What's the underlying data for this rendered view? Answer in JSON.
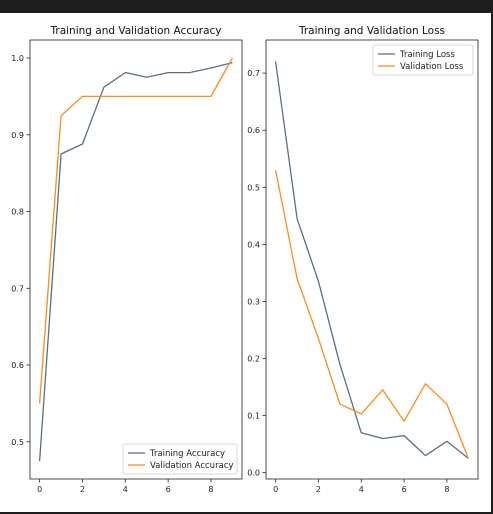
{
  "colors": {
    "background": "#1e1e1e",
    "figure": "#ffffff",
    "training_series": "#5a6f80",
    "validation_series": "#ff8c1a"
  },
  "chart_data": [
    {
      "type": "line",
      "title": "Training and Validation Accuracy",
      "xlabel": "",
      "ylabel": "",
      "x": [
        0,
        1,
        2,
        3,
        4,
        5,
        6,
        7,
        8,
        9
      ],
      "xticks": [
        "0",
        "2",
        "4",
        "6",
        "8"
      ],
      "xtick_values": [
        0,
        2,
        4,
        6,
        8
      ],
      "yticks": [
        "0.5",
        "0.6",
        "0.7",
        "0.8",
        "0.9",
        "1.0"
      ],
      "ytick_values": [
        0.5,
        0.6,
        0.7,
        0.8,
        0.9,
        1.0
      ],
      "xlim": [
        -0.45,
        9.45
      ],
      "ylim": [
        0.4515,
        1.0235
      ],
      "grid": false,
      "legend_position": "bottom-right",
      "series": [
        {
          "name": "Training Accuracy",
          "color": "#5a6f80",
          "values": [
            0.475,
            0.875,
            0.888,
            0.962,
            0.981,
            0.975,
            0.981,
            0.981,
            0.987,
            0.994
          ]
        },
        {
          "name": "Validation Accuracy",
          "color": "#ff8c1a",
          "values": [
            0.55,
            0.925,
            0.95,
            0.95,
            0.95,
            0.95,
            0.95,
            0.95,
            0.95,
            1.0
          ]
        }
      ]
    },
    {
      "type": "line",
      "title": "Training and Validation Loss",
      "xlabel": "",
      "ylabel": "",
      "x": [
        0,
        1,
        2,
        3,
        4,
        5,
        6,
        7,
        8,
        9
      ],
      "xticks": [
        "0",
        "2",
        "4",
        "6",
        "8"
      ],
      "xtick_values": [
        0,
        2,
        4,
        6,
        8
      ],
      "yticks": [
        "0.0",
        "0.1",
        "0.2",
        "0.3",
        "0.4",
        "0.5",
        "0.6",
        "0.7"
      ],
      "ytick_values": [
        0.0,
        0.1,
        0.2,
        0.3,
        0.4,
        0.5,
        0.6,
        0.7
      ],
      "xlim": [
        -0.45,
        9.45
      ],
      "ylim": [
        -0.011,
        0.758
      ],
      "grid": false,
      "legend_position": "top-right",
      "series": [
        {
          "name": "Training Loss",
          "color": "#5a6f80",
          "values": [
            0.72,
            0.445,
            0.335,
            0.19,
            0.07,
            0.06,
            0.065,
            0.03,
            0.055,
            0.025
          ]
        },
        {
          "name": "Validation Loss",
          "color": "#ff8c1a",
          "values": [
            0.53,
            0.34,
            0.235,
            0.12,
            0.103,
            0.145,
            0.09,
            0.156,
            0.12,
            0.025
          ]
        }
      ]
    }
  ]
}
